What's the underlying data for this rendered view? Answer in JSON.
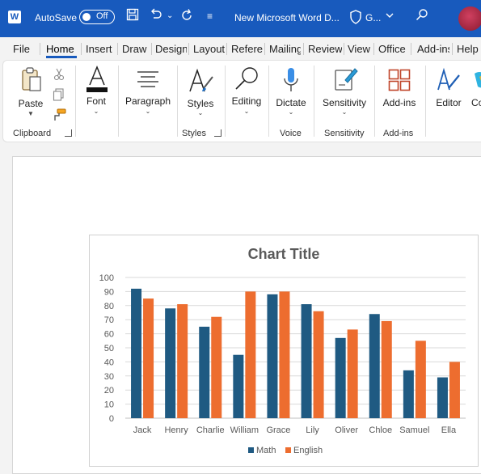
{
  "titlebar": {
    "logo": "W",
    "autosave_label": "AutoSave",
    "toggle_state": "Off",
    "doc_title": "New Microsoft Word D...",
    "sensitivity_short": "G...",
    "icons": [
      "save-icon",
      "undo-icon",
      "redo-icon",
      "customize-quick-access-icon",
      "search-icon"
    ]
  },
  "tabs": [
    {
      "label": "File"
    },
    {
      "label": "Home"
    },
    {
      "label": "Insert"
    },
    {
      "label": "Draw"
    },
    {
      "label": "Design"
    },
    {
      "label": "Layout"
    },
    {
      "label": "References"
    },
    {
      "label": "Mailings"
    },
    {
      "label": "Review"
    },
    {
      "label": "View"
    },
    {
      "label": "Office Tab"
    },
    {
      "label": "Add-ins"
    },
    {
      "label": "Help"
    }
  ],
  "active_tab": "Home",
  "ribbon": {
    "paste": "Paste",
    "font": "Font",
    "paragraph": "Paragraph",
    "styles": "Styles",
    "editing": "Editing",
    "dictate": "Dictate",
    "sensitivity": "Sensitivity",
    "addins": "Add-ins",
    "editor": "Editor",
    "copilot": "Co",
    "groups": {
      "clipboard": "Clipboard",
      "styles": "Styles",
      "voice": "Voice",
      "sensitivity": "Sensitivity",
      "addins": "Add-ins"
    }
  },
  "chart_data": {
    "type": "bar",
    "title": "Chart Title",
    "categories": [
      "Jack",
      "Henry",
      "Charlie",
      "William",
      "Grace",
      "Lily",
      "Oliver",
      "Chloe",
      "Samuel",
      "Ella"
    ],
    "series": [
      {
        "name": "Math",
        "color": "#1f5a82",
        "values": [
          92,
          78,
          65,
          45,
          88,
          81,
          57,
          74,
          34,
          29
        ]
      },
      {
        "name": "English",
        "color": "#ed6d2f",
        "values": [
          85,
          81,
          72,
          90,
          90,
          76,
          63,
          69,
          55,
          40
        ]
      }
    ],
    "ylim": [
      0,
      100
    ],
    "yticks": [
      0,
      10,
      20,
      30,
      40,
      50,
      60,
      70,
      80,
      90,
      100
    ],
    "grid": true,
    "legend_position": "bottom"
  }
}
